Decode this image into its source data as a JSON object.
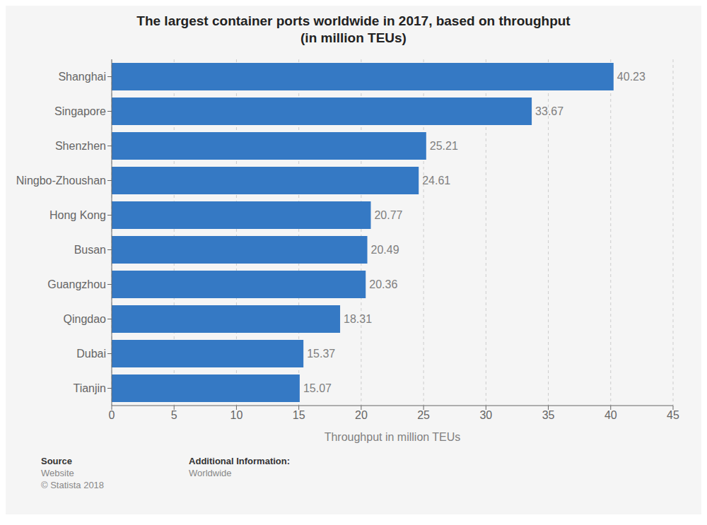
{
  "chart_data": {
    "type": "bar",
    "orientation": "horizontal",
    "title": "The largest container ports worldwide in 2017, based on throughput\n(in million TEUs)",
    "categories": [
      "Shanghai",
      "Singapore",
      "Shenzhen",
      "Ningbo-Zhoushan",
      "Hong Kong",
      "Busan",
      "Guangzhou",
      "Qingdao",
      "Dubai",
      "Tianjin"
    ],
    "values": [
      40.23,
      33.67,
      25.21,
      24.61,
      20.77,
      20.49,
      20.36,
      18.31,
      15.37,
      15.07
    ],
    "color": "#3579C4",
    "xlabel": "Throughput in million TEUs",
    "xlim": [
      0,
      45
    ],
    "xticks": [
      0,
      5,
      10,
      15,
      20,
      25,
      30,
      35,
      40,
      45
    ],
    "grid": true,
    "data_labels": true,
    "annotations": [
      "Source",
      "Website\n© Statista 2018",
      "Additional Information:",
      "Worldwide"
    ]
  }
}
